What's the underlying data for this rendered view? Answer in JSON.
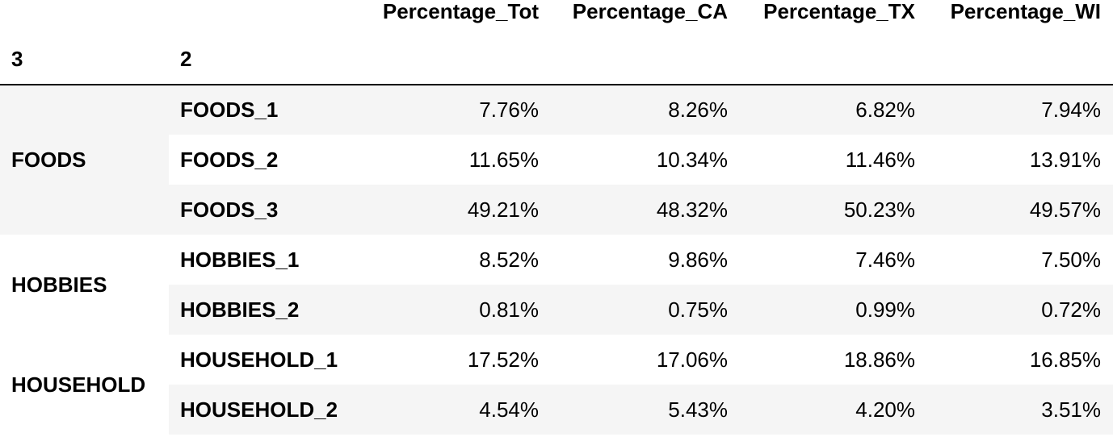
{
  "table": {
    "columns": [
      "Percentage_Tot",
      "Percentage_CA",
      "Percentage_TX",
      "Percentage_WI"
    ],
    "index_names": [
      "3",
      "2"
    ],
    "groups": [
      {
        "label": "FOODS",
        "rows": [
          {
            "label": "FOODS_1",
            "values": [
              "7.76%",
              "8.26%",
              "6.82%",
              "7.94%"
            ]
          },
          {
            "label": "FOODS_2",
            "values": [
              "11.65%",
              "10.34%",
              "11.46%",
              "13.91%"
            ]
          },
          {
            "label": "FOODS_3",
            "values": [
              "49.21%",
              "48.32%",
              "50.23%",
              "49.57%"
            ]
          }
        ]
      },
      {
        "label": "HOBBIES",
        "rows": [
          {
            "label": "HOBBIES_1",
            "values": [
              "8.52%",
              "9.86%",
              "7.46%",
              "7.50%"
            ]
          },
          {
            "label": "HOBBIES_2",
            "values": [
              "0.81%",
              "0.75%",
              "0.99%",
              "0.72%"
            ]
          }
        ]
      },
      {
        "label": "HOUSEHOLD",
        "rows": [
          {
            "label": "HOUSEHOLD_1",
            "values": [
              "17.52%",
              "17.06%",
              "18.86%",
              "16.85%"
            ]
          },
          {
            "label": "HOUSEHOLD_2",
            "values": [
              "4.54%",
              "5.43%",
              "4.20%",
              "3.51%"
            ]
          }
        ]
      }
    ]
  }
}
